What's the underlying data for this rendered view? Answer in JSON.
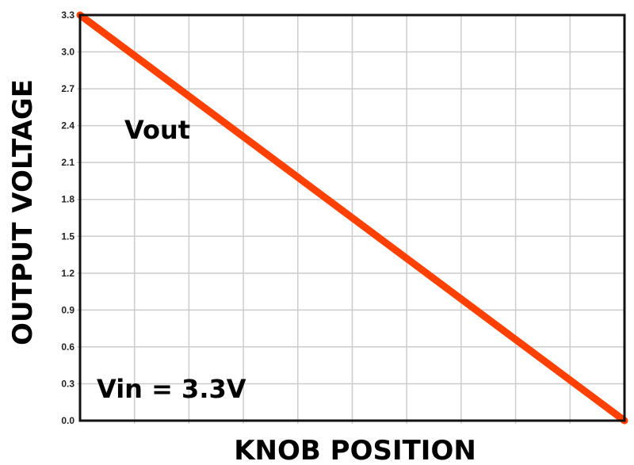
{
  "chart_data": {
    "type": "line",
    "title": "",
    "xlabel": "KNOB POSITION",
    "ylabel": "OUTPUT VOLTAGE",
    "ylim": [
      0.0,
      3.3
    ],
    "xlim": [
      0,
      1
    ],
    "yticks": [
      "0.0",
      "0.3",
      "0.6",
      "0.9",
      "1.2",
      "1.5",
      "1.8",
      "2.1",
      "2.4",
      "2.7",
      "3.0",
      "3.3"
    ],
    "x_grid_divisions": 10,
    "grid": true,
    "series": [
      {
        "name": "Vout",
        "x": [
          0,
          1
        ],
        "y": [
          3.3,
          0.0
        ],
        "color": "#ff4000"
      }
    ],
    "annotations": {
      "series_label": "Vout",
      "input_note": "Vin = 3.3V"
    }
  }
}
